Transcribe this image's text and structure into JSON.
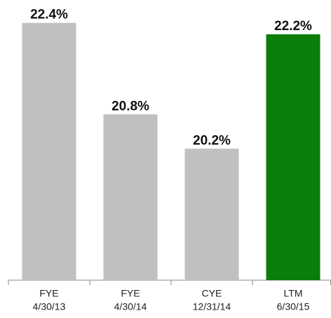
{
  "chart_data": {
    "type": "bar",
    "categories": [
      [
        "FYE",
        "4/30/13"
      ],
      [
        "FYE",
        "4/30/14"
      ],
      [
        "CYE",
        "12/31/14"
      ],
      [
        "LTM",
        "6/30/15"
      ]
    ],
    "values": [
      22.4,
      20.8,
      20.2,
      22.2
    ],
    "value_labels": [
      "22.4%",
      "20.8%",
      "20.2%",
      "22.2%"
    ],
    "colors": [
      "#c0c0c0",
      "#c0c0c0",
      "#c0c0c0",
      "#0a7d0a"
    ],
    "ylim": [
      17.9,
      22.8
    ]
  }
}
